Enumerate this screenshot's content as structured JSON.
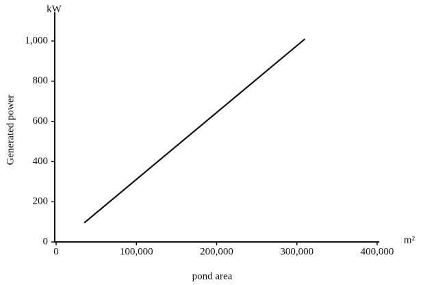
{
  "chart_data": {
    "type": "line",
    "x_unit": "m²",
    "y_unit": "kW",
    "xlabel": "pond area",
    "ylabel": "Generated power",
    "x": [
      35000,
      310000
    ],
    "series": [
      {
        "name": "Generated power",
        "color": "#111111",
        "values": [
          95,
          1010
        ]
      }
    ],
    "xlim": [
      0,
      400000
    ],
    "xticks": [
      0,
      {
        "value": 100000,
        "label": "100,000"
      },
      {
        "value": 200000,
        "label": "200,000"
      },
      {
        "value": 300000,
        "label": "300,000"
      },
      {
        "value": 400000,
        "label": "400,000"
      }
    ],
    "ylim": [
      0,
      1000
    ],
    "yticks": [
      0,
      200,
      400,
      600,
      800,
      {
        "value": 1000,
        "label": "1,000"
      }
    ],
    "grid": false
  }
}
